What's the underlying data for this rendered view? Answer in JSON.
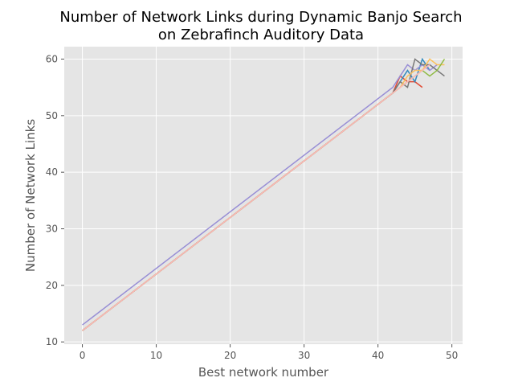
{
  "chart_data": {
    "type": "line",
    "title_lines": [
      "Number of Network Links during Dynamic Banjo Search",
      "on Zebrafinch Auditory Data"
    ],
    "xlabel": "Best network number",
    "ylabel": "Number of Network Links",
    "xlim": [
      -2.45,
      51.45
    ],
    "ylim": [
      9.6,
      62.2
    ],
    "xticks": [
      0,
      10,
      20,
      30,
      40,
      50
    ],
    "yticks": [
      10,
      20,
      30,
      40,
      50,
      60
    ],
    "grid": true,
    "legend": false,
    "background": "#E5E5E5",
    "series": [
      {
        "color": "#E24A33",
        "x": [
          0,
          42,
          43,
          44,
          45,
          46
        ],
        "y": [
          12,
          54,
          57,
          56,
          56,
          55
        ]
      },
      {
        "color": "#348ABD",
        "x": [
          0,
          42,
          43,
          44,
          45,
          46,
          47
        ],
        "y": [
          12,
          54,
          56,
          58,
          56,
          60,
          58
        ]
      },
      {
        "color": "#988ED5",
        "x": [
          0,
          42,
          43,
          44,
          45,
          46,
          47,
          48
        ],
        "y": [
          13,
          55,
          57,
          59,
          58,
          59,
          58,
          59
        ]
      },
      {
        "color": "#777777",
        "x": [
          0,
          42,
          43,
          44,
          45,
          46,
          47,
          48,
          49
        ],
        "y": [
          12,
          54,
          56,
          55,
          60,
          59,
          59,
          58,
          57
        ]
      },
      {
        "color": "#FBC15E",
        "x": [
          0,
          42,
          43,
          44,
          45,
          46,
          47,
          48,
          49
        ],
        "y": [
          12,
          54,
          55,
          57,
          58,
          58,
          60,
          59,
          59
        ]
      },
      {
        "color": "#8EBA42",
        "x": [
          0,
          42,
          43,
          44,
          45,
          46,
          47,
          48,
          49
        ],
        "y": [
          12,
          54,
          55,
          56,
          57,
          58,
          57,
          58,
          60
        ]
      },
      {
        "color": "#FFB5B8",
        "x": [
          0,
          42,
          43,
          44,
          45,
          46,
          47
        ],
        "y": [
          12,
          54,
          55,
          56,
          57,
          58,
          59
        ]
      }
    ]
  }
}
